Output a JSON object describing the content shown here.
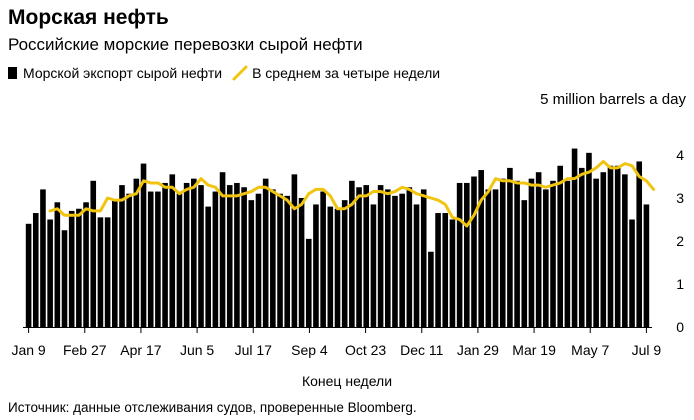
{
  "header": {
    "title": "Морская нефть",
    "subtitle": "Российские морские перевозки сырой нефти"
  },
  "legend": {
    "bars_label": "Морской экспорт сырой нефти",
    "line_label": "В среднем за четыре недели"
  },
  "units_label": "5 million barrels a day",
  "footer": {
    "xlabel": "Конец недели",
    "source": "Источник: данные отслеживания судов, проверенные Bloomberg."
  },
  "colors": {
    "bars": "#000000",
    "line": "#f1c40f"
  },
  "chart_data": {
    "type": "bar",
    "title": "Морская нефть",
    "subtitle": "Российские морские перевозки сырой нефти",
    "xlabel": "Конец недели",
    "ylabel": "5 million barrels a day",
    "ylim": [
      0,
      5
    ],
    "yticks": [
      0,
      1,
      2,
      3,
      4
    ],
    "grid": false,
    "legend_position": "top-left",
    "x_tick_labels": [
      "Jan 9",
      "Feb 27",
      "Apr 17",
      "Jun 5",
      "Jul 17",
      "Sep 4",
      "Oct 23",
      "Dec 11",
      "Jan 29",
      "Mar 19",
      "May 7",
      "Jul 9"
    ],
    "series": [
      {
        "name": "Морской экспорт сырой нефти",
        "type": "bar",
        "values": [
          2.4,
          2.65,
          3.2,
          2.5,
          2.9,
          2.25,
          2.7,
          2.75,
          2.9,
          3.4,
          2.55,
          2.55,
          2.95,
          3.3,
          3.1,
          3.45,
          3.8,
          3.15,
          3.15,
          3.35,
          3.55,
          3.1,
          3.35,
          3.45,
          3.3,
          2.8,
          3.15,
          3.6,
          3.3,
          3.35,
          3.25,
          2.95,
          3.1,
          3.45,
          3.2,
          3.1,
          3.05,
          3.55,
          3.0,
          2.05,
          2.85,
          3.15,
          2.8,
          2.75,
          2.95,
          3.4,
          3.25,
          3.3,
          2.85,
          3.3,
          3.2,
          3.05,
          3.1,
          3.25,
          2.85,
          3.2,
          1.75,
          2.65,
          2.65,
          2.5,
          3.35,
          3.35,
          3.5,
          3.65,
          3.2,
          3.2,
          3.45,
          3.7,
          3.4,
          2.95,
          3.45,
          3.6,
          3.2,
          3.4,
          3.75,
          3.4,
          4.15,
          3.7,
          4.05,
          3.45,
          3.6,
          3.75,
          3.75,
          3.55,
          2.5,
          3.85,
          2.85
        ]
      },
      {
        "name": "В среднем за четыре недели",
        "type": "line",
        "start_index": 3,
        "values": [
          2.7,
          2.75,
          2.6,
          2.6,
          2.6,
          2.75,
          2.7,
          2.7,
          3.0,
          2.95,
          2.95,
          3.05,
          3.1,
          3.4,
          3.35,
          3.35,
          3.25,
          3.25,
          3.1,
          3.2,
          3.25,
          3.45,
          3.3,
          3.25,
          3.05,
          3.05,
          3.05,
          3.1,
          3.15,
          3.25,
          3.25,
          3.15,
          3.05,
          2.95,
          2.75,
          2.85,
          3.1,
          3.2,
          3.2,
          3.05,
          2.75,
          2.75,
          2.85,
          3.05,
          3.05,
          3.15,
          3.15,
          3.1,
          3.15,
          3.25,
          3.2,
          3.1,
          3.05,
          3.0,
          2.95,
          2.85,
          2.55,
          2.5,
          2.35,
          2.6,
          2.95,
          3.15,
          3.45,
          3.4,
          3.4,
          3.35,
          3.35,
          3.3,
          3.3,
          3.25,
          3.3,
          3.35,
          3.45,
          3.45,
          3.55,
          3.6,
          3.7,
          3.85,
          3.7,
          3.7,
          3.8,
          3.75,
          3.5,
          3.4,
          3.2
        ]
      }
    ]
  }
}
